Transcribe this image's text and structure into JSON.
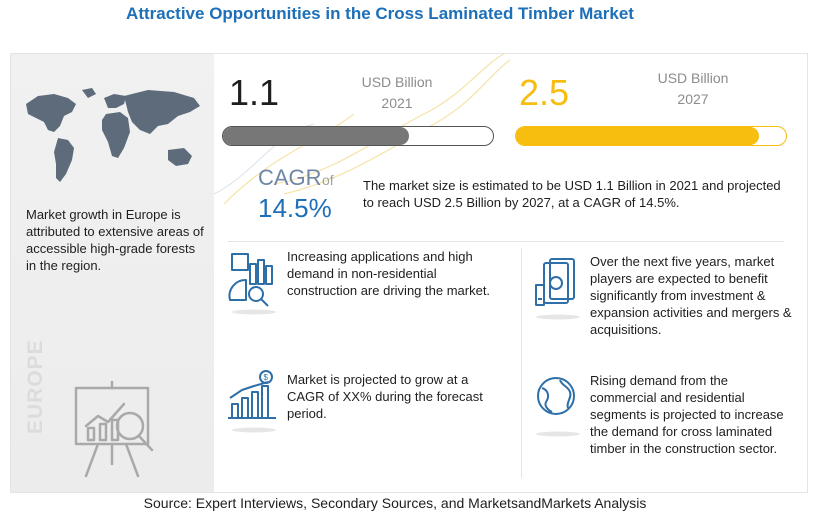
{
  "title": "Attractive Opportunities in the Cross Laminated Timber Market",
  "market_size": {
    "value_2021": "1.1",
    "unit_2021": "USD Billion",
    "year_2021": "2021",
    "value_2027": "2.5",
    "unit_2027": "USD Billion",
    "year_2027": "2027",
    "bar_fill_2021": 0.69,
    "bar_fill_2027": 0.9
  },
  "cagr": {
    "label": "CAGR",
    "of": "of",
    "value": "14.5%"
  },
  "market_description": "The market size is estimated to be USD 1.1 Billion in 2021 and projected to reach USD 2.5 Billion by 2027, at a CAGR of 14.5%.",
  "left_panel": {
    "text": "Market growth in Europe is attributed to extensive areas of accessible high-grade forests in the region.",
    "region_label": "EUROPE"
  },
  "points": [
    "Increasing applications and high demand in non-residential construction are driving the market.",
    "Over the next five years, market players are expected to benefit significantly from investment & expansion activities and mergers & acquisitions.",
    "Market is projected to grow at a CAGR of XX% during the forecast period.",
    "Rising demand from the commercial and residential segments is projected to increase the demand for cross laminated timber in the construction sector."
  ],
  "source": "Source: Expert Interviews, Secondary Sources, and MarketsandMarkets Analysis",
  "colors": {
    "title": "#1d6fb8",
    "accent_yellow": "#f7be0f",
    "bar_gray": "#777777",
    "cagr_blue": "#1d6fb8",
    "icon_blue": "#2f6fa8"
  },
  "icons": [
    "world-map-icon",
    "presentation-easel-icon",
    "construction-chart-icon",
    "money-hand-icon",
    "growth-bar-chart-icon",
    "globe-icon"
  ]
}
